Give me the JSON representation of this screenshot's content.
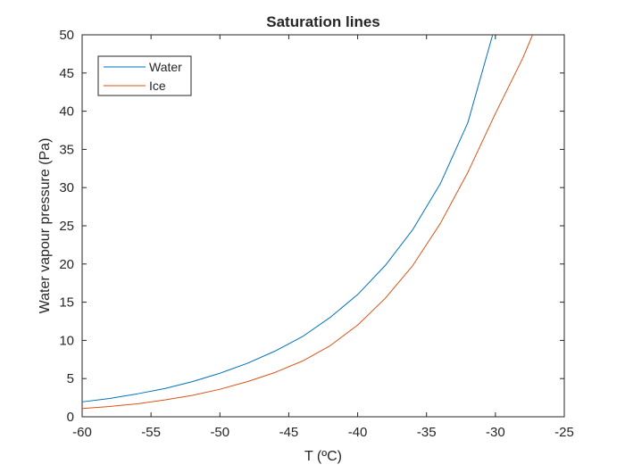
{
  "chart_data": {
    "type": "line",
    "title": "Saturation lines",
    "xlabel": "T (ºC)",
    "ylabel": "Water vapour pressure (Pa)",
    "xlim": [
      -60,
      -25
    ],
    "ylim": [
      0,
      50
    ],
    "xticks": [
      -60,
      -55,
      -50,
      -45,
      -40,
      -35,
      -30,
      -25
    ],
    "yticks": [
      0,
      5,
      10,
      15,
      20,
      25,
      30,
      35,
      40,
      45,
      50
    ],
    "grid": false,
    "legend_position": "top-left",
    "series": [
      {
        "name": "Water",
        "color": "#0072BD",
        "x": [
          -60,
          -58,
          -56,
          -54,
          -52,
          -50,
          -48,
          -46,
          -44,
          -42,
          -40,
          -38,
          -36,
          -34,
          -32,
          -30.2
        ],
        "y": [
          1.95,
          2.4,
          3.0,
          3.7,
          4.6,
          5.7,
          7.0,
          8.6,
          10.5,
          13.0,
          16.0,
          19.8,
          24.5,
          30.5,
          38.5,
          50.0
        ]
      },
      {
        "name": "Ice",
        "color": "#D95319",
        "x": [
          -60,
          -58,
          -56,
          -54,
          -52,
          -50,
          -48,
          -46,
          -44,
          -42,
          -40,
          -38,
          -36,
          -34,
          -32,
          -30,
          -28,
          -27.3
        ],
        "y": [
          1.08,
          1.35,
          1.7,
          2.2,
          2.8,
          3.6,
          4.6,
          5.8,
          7.3,
          9.3,
          12.0,
          15.5,
          19.8,
          25.3,
          32.0,
          39.7,
          47.0,
          50.0
        ]
      }
    ]
  }
}
